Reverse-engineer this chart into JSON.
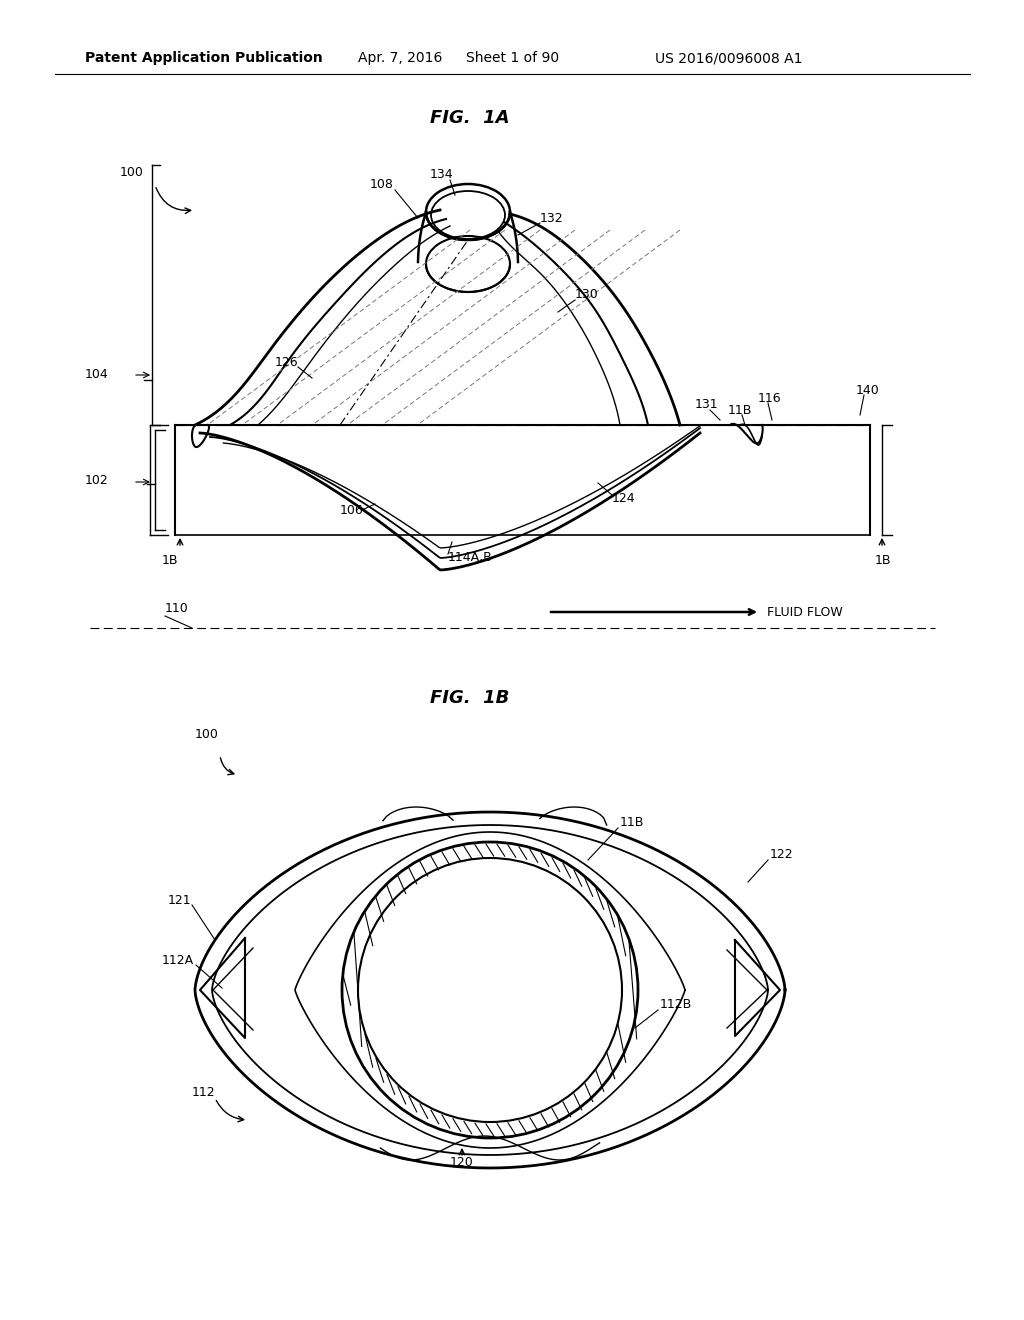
{
  "background_color": "#ffffff",
  "header_text": "Patent Application Publication",
  "header_date": "Apr. 7, 2016",
  "header_sheet": "Sheet 1 of 90",
  "header_patent": "US 2016/0096008 A1",
  "fig1a_title": "FIG.  1A",
  "fig1b_title": "FIG.  1B",
  "line_color": "#000000",
  "label_fontsize": 9,
  "title_fontsize": 13,
  "header_fontsize": 10
}
